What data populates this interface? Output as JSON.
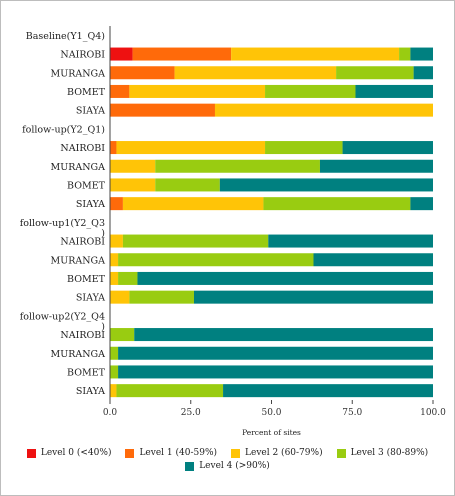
{
  "chart_data": {
    "type": "bar",
    "orientation": "horizontal",
    "stacked": true,
    "xlabel": "Percent of sites",
    "xlim": [
      0,
      100
    ],
    "xticks": [
      "0.0",
      "25.0",
      "50.0",
      "75.0",
      "100.0"
    ],
    "grid": false,
    "legend_position": "bottom",
    "categories": [
      "Baseline(Y1_Q4)",
      "NAIROBI",
      "MURANGA",
      "BOMET",
      "SIAYA",
      "follow-up(Y2_Q1)",
      "NAIROBI",
      "MURANGA",
      "BOMET",
      "SIAYA",
      "follow-up1(Y2_Q3\n)",
      "NAIROBI",
      "MURANGA",
      "BOMET",
      "SIAYA",
      "follow-up2(Y2_Q4\n)",
      "NAIROBI",
      "MURANGA",
      "BOMET",
      "SIAYA"
    ],
    "series": [
      {
        "name": "Level 0 (<40%)",
        "color": "#ee1111",
        "values": [
          0,
          7,
          0,
          0,
          0,
          0,
          0,
          0,
          0,
          0,
          0,
          0,
          0,
          0,
          0,
          0,
          0,
          0,
          0,
          0
        ]
      },
      {
        "name": "Level 1 (40-59%)",
        "color": "#ff6a0a",
        "values": [
          0,
          30.5,
          20,
          6,
          32.5,
          0,
          2,
          0,
          0,
          4,
          0,
          0,
          0,
          0,
          0,
          0,
          0,
          0,
          0,
          0
        ]
      },
      {
        "name": "Level 2 (60-79%)",
        "color": "#ffc407",
        "values": [
          0,
          52,
          50,
          42,
          67.5,
          0,
          46,
          14,
          14,
          43.5,
          0,
          4,
          2.5,
          2.5,
          6,
          0,
          0,
          0,
          0,
          2
        ]
      },
      {
        "name": "Level 3 (80-89%)",
        "color": "#99cc11",
        "values": [
          0,
          3.5,
          24,
          28,
          0,
          0,
          24,
          51,
          20,
          45.5,
          0,
          45,
          60.5,
          6,
          20,
          0,
          7.5,
          2.5,
          2.5,
          33
        ]
      },
      {
        "name": "Level 4 (>90%)",
        "color": "#008080",
        "values": [
          0,
          7,
          6,
          24,
          0,
          0,
          28,
          35,
          66,
          7,
          0,
          51,
          37,
          91.5,
          74,
          0,
          92.5,
          97.5,
          97.5,
          65
        ]
      }
    ]
  }
}
